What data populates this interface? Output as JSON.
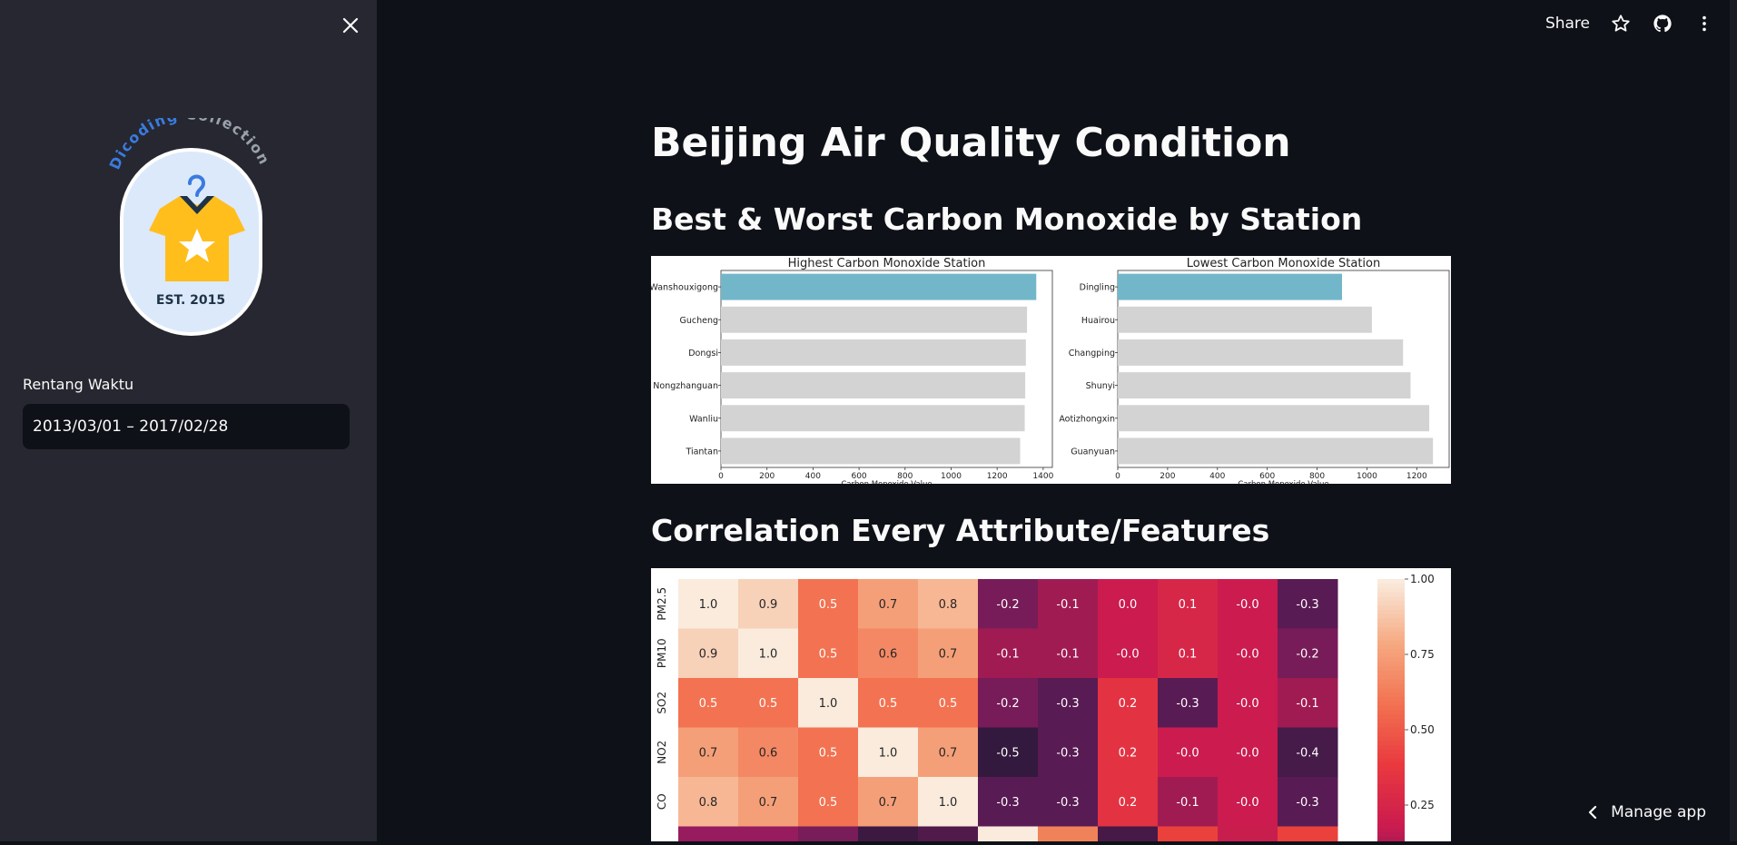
{
  "sidebar": {
    "logo": {
      "arc_text_1": "Dicoding",
      "arc_text_2": "Collection",
      "est": "EST. 2015",
      "colors": {
        "blue": "#3a7be0",
        "gray": "#9aa1ab",
        "shirt": "#ffbe1c",
        "bg": "#dce9fb"
      }
    },
    "date_label": "Rentang Waktu",
    "date_value": "2013/03/01 – 2017/02/28"
  },
  "topbar": {
    "share": "Share",
    "icons": [
      "star-icon",
      "github-icon",
      "more-vert-icon"
    ]
  },
  "main": {
    "title": "Beijing Air Quality Condition",
    "section1": "Best & Worst Carbon Monoxide by Station",
    "section2": "Correlation Every Attribute/Features"
  },
  "manage_app": "Manage app",
  "chart_data": [
    {
      "type": "bar",
      "orientation": "horizontal",
      "title": "Highest Carbon Monoxide Station",
      "xlabel": "Carbon Monoxide Value",
      "categories": [
        "Wanshouxigong",
        "Gucheng",
        "Dongsi",
        "Nongzhanguan",
        "Wanliu",
        "Tiantan"
      ],
      "values": [
        1370,
        1330,
        1325,
        1322,
        1320,
        1300
      ],
      "xlim": [
        0,
        1440
      ],
      "xticks": [
        "0",
        "200",
        "400",
        "600",
        "800",
        "1000",
        "1200",
        "1400"
      ],
      "highlight_color": "#72b6c9",
      "bar_color": "#d3d3d3"
    },
    {
      "type": "bar",
      "orientation": "horizontal",
      "title": "Lowest Carbon Monoxide Station",
      "xlabel": "Carbon Monoxide Value",
      "categories": [
        "Dingling",
        "Huairou",
        "Changping",
        "Shunyi",
        "Aotizhongxin",
        "Guanyuan"
      ],
      "values": [
        900,
        1020,
        1145,
        1175,
        1250,
        1265
      ],
      "xlim": [
        0,
        1330
      ],
      "xticks": [
        "0",
        "200",
        "400",
        "600",
        "800",
        "1000",
        "1200"
      ],
      "highlight_color": "#72b6c9",
      "bar_color": "#d3d3d3"
    },
    {
      "type": "heatmap",
      "rows": [
        "PM2.5",
        "PM10",
        "SO2",
        "NO2",
        "CO"
      ],
      "cells": [
        [
          "1.0",
          "0.9",
          "0.5",
          "0.7",
          "0.8",
          "-0.2",
          "-0.1",
          "0.0",
          "0.1",
          "-0.0",
          "-0.3"
        ],
        [
          "0.9",
          "1.0",
          "0.5",
          "0.6",
          "0.7",
          "-0.1",
          "-0.1",
          "-0.0",
          "0.1",
          "-0.0",
          "-0.2"
        ],
        [
          "0.5",
          "0.5",
          "1.0",
          "0.5",
          "0.5",
          "-0.2",
          "-0.3",
          "0.2",
          "-0.3",
          "-0.0",
          "-0.1"
        ],
        [
          "0.7",
          "0.6",
          "0.5",
          "1.0",
          "0.7",
          "-0.5",
          "-0.3",
          "0.2",
          "-0.0",
          "-0.0",
          "-0.4"
        ],
        [
          "0.8",
          "0.7",
          "0.5",
          "0.7",
          "1.0",
          "-0.3",
          "-0.3",
          "0.2",
          "-0.1",
          "-0.0",
          "-0.3"
        ]
      ],
      "colorbar_ticks": [
        "1.00",
        "0.75",
        "0.50",
        "0.25"
      ]
    }
  ]
}
